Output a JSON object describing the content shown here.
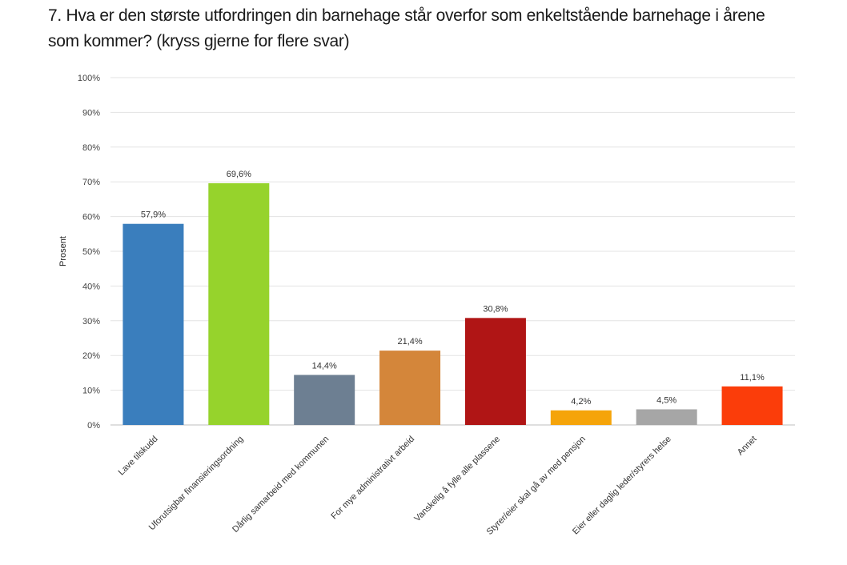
{
  "question": {
    "line1": "7. Hva er den største utfordringen din barnehage står overfor som enkeltstående barnehage i årene",
    "line2": "som kommer? (kryss gjerne for flere svar)"
  },
  "chart_data": {
    "type": "bar",
    "title": "7. Hva er den største utfordringen din barnehage står overfor som enkeltstående barnehage i årene som kommer? (kryss gjerne for flere svar)",
    "ylabel": "Prosent",
    "xlabel": "",
    "ylim": [
      0,
      100
    ],
    "yticks": [
      0,
      10,
      20,
      30,
      40,
      50,
      60,
      70,
      80,
      90,
      100
    ],
    "ytick_labels": [
      "0%",
      "10%",
      "20%",
      "30%",
      "40%",
      "50%",
      "60%",
      "70%",
      "80%",
      "90%",
      "100%"
    ],
    "grid": true,
    "categories": [
      "Lave tilskudd",
      "Uforutsigbar finansieringsordning",
      "Dårlig samarbeid med kommunen",
      "For mye administrativt arbeid",
      "Vanskelig å fylle alle plassene",
      "Styrer/eier skal gå av med pensjon",
      "Eier eller daglig leder/styrers helse",
      "Annet"
    ],
    "values": [
      57.9,
      69.6,
      14.4,
      21.4,
      30.8,
      4.2,
      4.5,
      11.1
    ],
    "value_labels": [
      "57,9%",
      "69,6%",
      "14,4%",
      "21,4%",
      "30,8%",
      "4,2%",
      "4,5%",
      "11,1%"
    ],
    "colors": [
      "#3a7ebd",
      "#96d32c",
      "#6d7f92",
      "#d4863a",
      "#b01515",
      "#f5a40a",
      "#a6a6a6",
      "#fb3d0a"
    ]
  }
}
